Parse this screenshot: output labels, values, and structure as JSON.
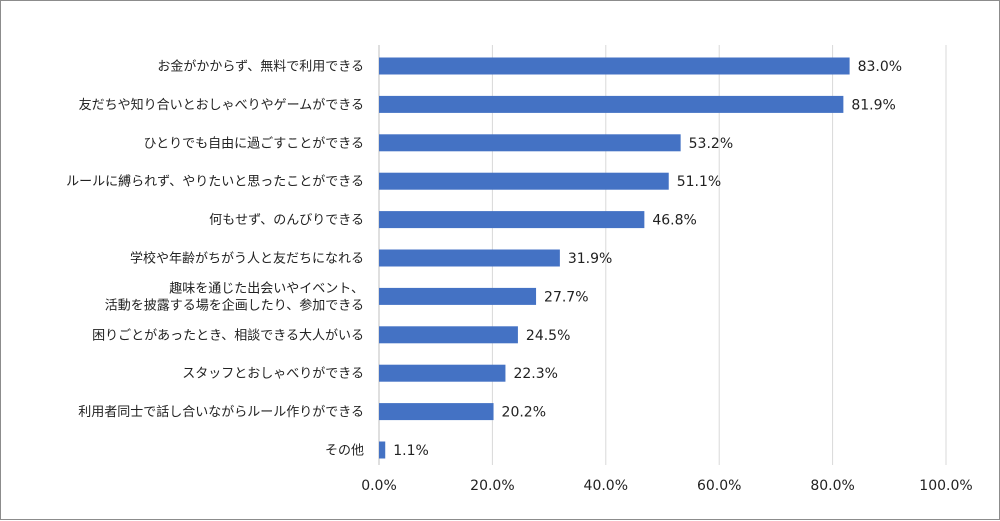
{
  "chart_data": {
    "type": "bar",
    "orientation": "horizontal",
    "title": "",
    "xlabel": "",
    "ylabel": "",
    "xlim": [
      0,
      100
    ],
    "grid": true,
    "bar_color": "#4472C4",
    "categories": [
      [
        "お金がかからず、無料で利用できる"
      ],
      [
        "友だちや知り合いとおしゃべりやゲームができる"
      ],
      [
        "ひとりでも自由に過ごすことができる"
      ],
      [
        "ルールに縛られず、やりたいと思ったことができる"
      ],
      [
        "何もせず、のんびりできる"
      ],
      [
        "学校や年齢がちがう人と友だちになれる"
      ],
      [
        "趣味を通じた出会いやイベント、",
        "活動を披露する場を企画したり、参加できる"
      ],
      [
        "困りごとがあったとき、相談できる大人がいる"
      ],
      [
        "スタッフとおしゃべりができる"
      ],
      [
        "利用者同士で話し合いながらルール作りができる"
      ],
      [
        "その他"
      ]
    ],
    "values": [
      83.0,
      81.9,
      53.2,
      51.1,
      46.8,
      31.9,
      27.7,
      24.5,
      22.3,
      20.2,
      1.1
    ],
    "value_labels": [
      "83.0%",
      "81.9%",
      "53.2%",
      "51.1%",
      "46.8%",
      "31.9%",
      "27.7%",
      "24.5%",
      "22.3%",
      "20.2%",
      "1.1%"
    ],
    "x_ticks": [
      "0.0%",
      "20.0%",
      "40.0%",
      "60.0%",
      "80.0%",
      "100.0%"
    ],
    "x_tick_values": [
      0,
      20,
      40,
      60,
      80,
      100
    ]
  }
}
